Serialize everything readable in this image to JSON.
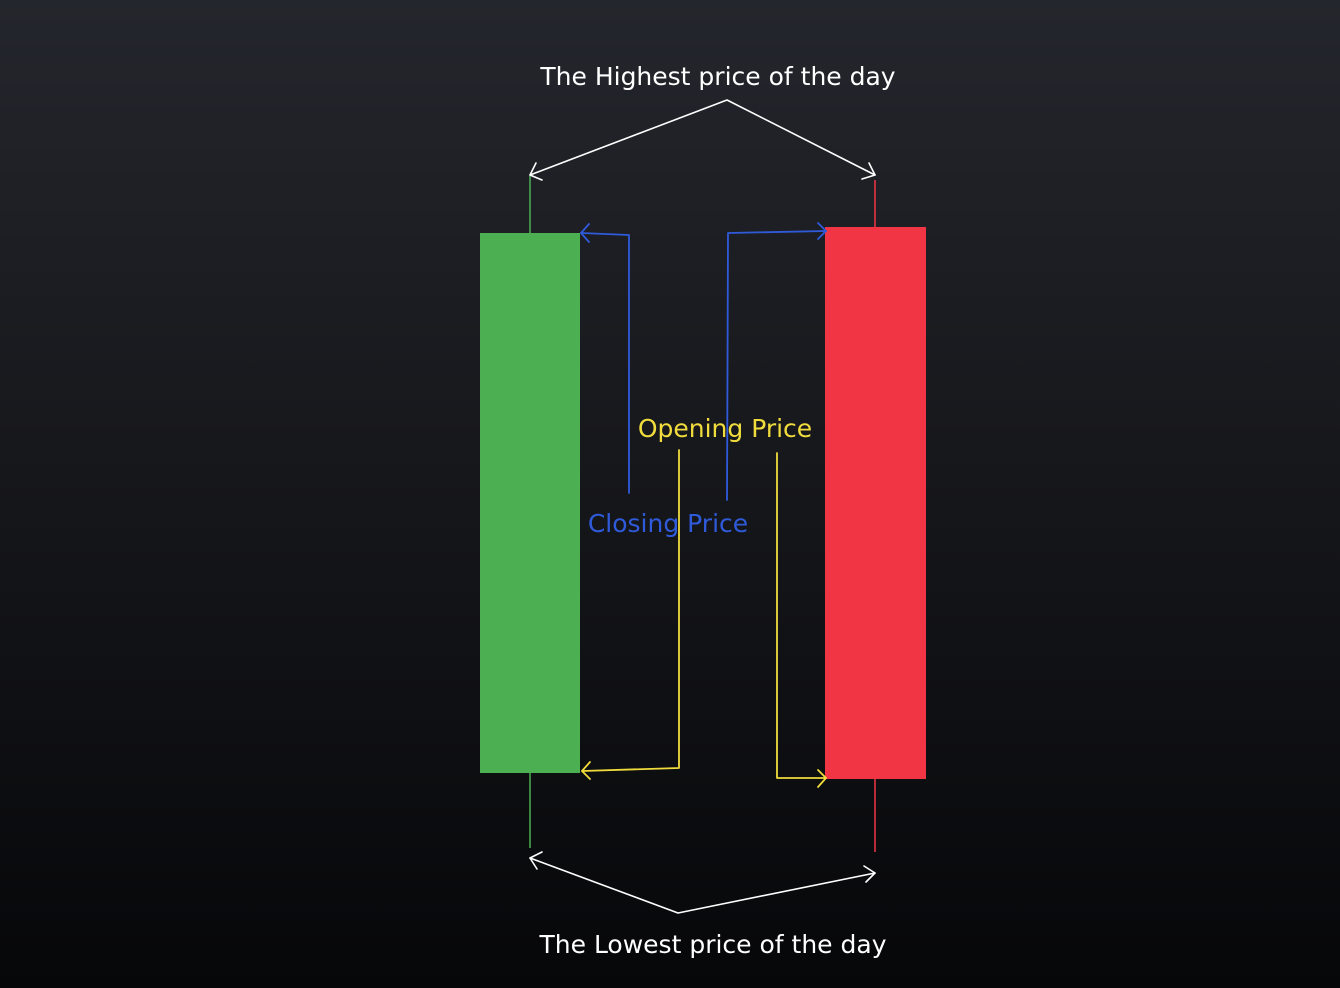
{
  "labels": {
    "highest": "The Highest price of the day",
    "lowest": "The Lowest price of the day",
    "opening": "Opening Price",
    "closing": "Closing Price"
  },
  "colors": {
    "bullish": "#4caf52",
    "bearish": "#f13545",
    "closing_arrow": "#2f5bdb",
    "opening_arrow": "#f0dc3c",
    "extreme_arrow": "#ffffff"
  },
  "candles": [
    {
      "name": "bullish-candle",
      "trend": "up"
    },
    {
      "name": "bearish-candle",
      "trend": "down"
    }
  ]
}
